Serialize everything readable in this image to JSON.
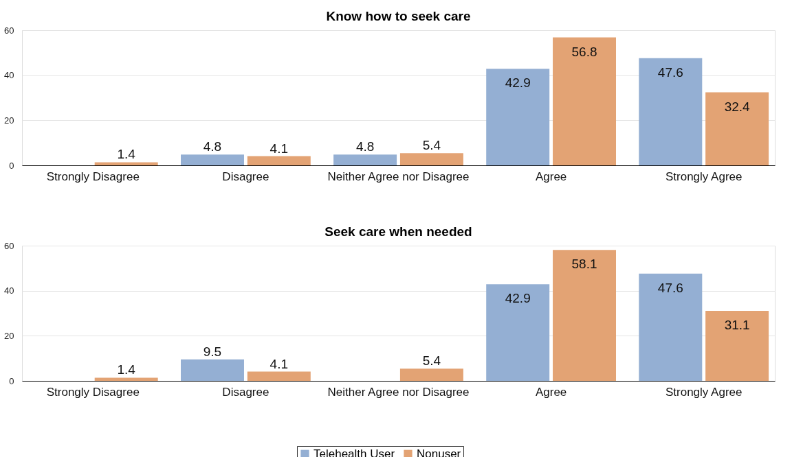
{
  "chart_data": [
    {
      "type": "bar",
      "title": "Know how to seek care",
      "categories": [
        "Strongly Disagree",
        "Disagree",
        "Neither Agree nor Disagree",
        "Agree",
        "Strongly Agree"
      ],
      "series": [
        {
          "name": "Telehealth User",
          "color": "#94afd3",
          "values": [
            null,
            4.8,
            4.8,
            42.9,
            47.6
          ]
        },
        {
          "name": "Nonuser",
          "color": "#e3a374",
          "values": [
            1.4,
            4.1,
            5.4,
            56.8,
            32.4
          ]
        }
      ],
      "ylim": [
        0,
        60
      ],
      "yticks": [
        0,
        20,
        40,
        60
      ],
      "grid": "y",
      "data_labels": true,
      "legend": "bottom"
    },
    {
      "type": "bar",
      "title": "Seek care when needed",
      "categories": [
        "Strongly Disagree",
        "Disagree",
        "Neither Agree nor Disagree",
        "Agree",
        "Strongly Agree"
      ],
      "series": [
        {
          "name": "Telehealth User",
          "color": "#94afd3",
          "values": [
            null,
            9.5,
            null,
            42.9,
            47.6
          ]
        },
        {
          "name": "Nonuser",
          "color": "#e3a374",
          "values": [
            1.4,
            4.1,
            5.4,
            58.1,
            31.1
          ]
        }
      ],
      "ylim": [
        0,
        60
      ],
      "yticks": [
        0,
        20,
        40,
        60
      ],
      "grid": "y",
      "data_labels": true,
      "legend": "bottom"
    }
  ]
}
